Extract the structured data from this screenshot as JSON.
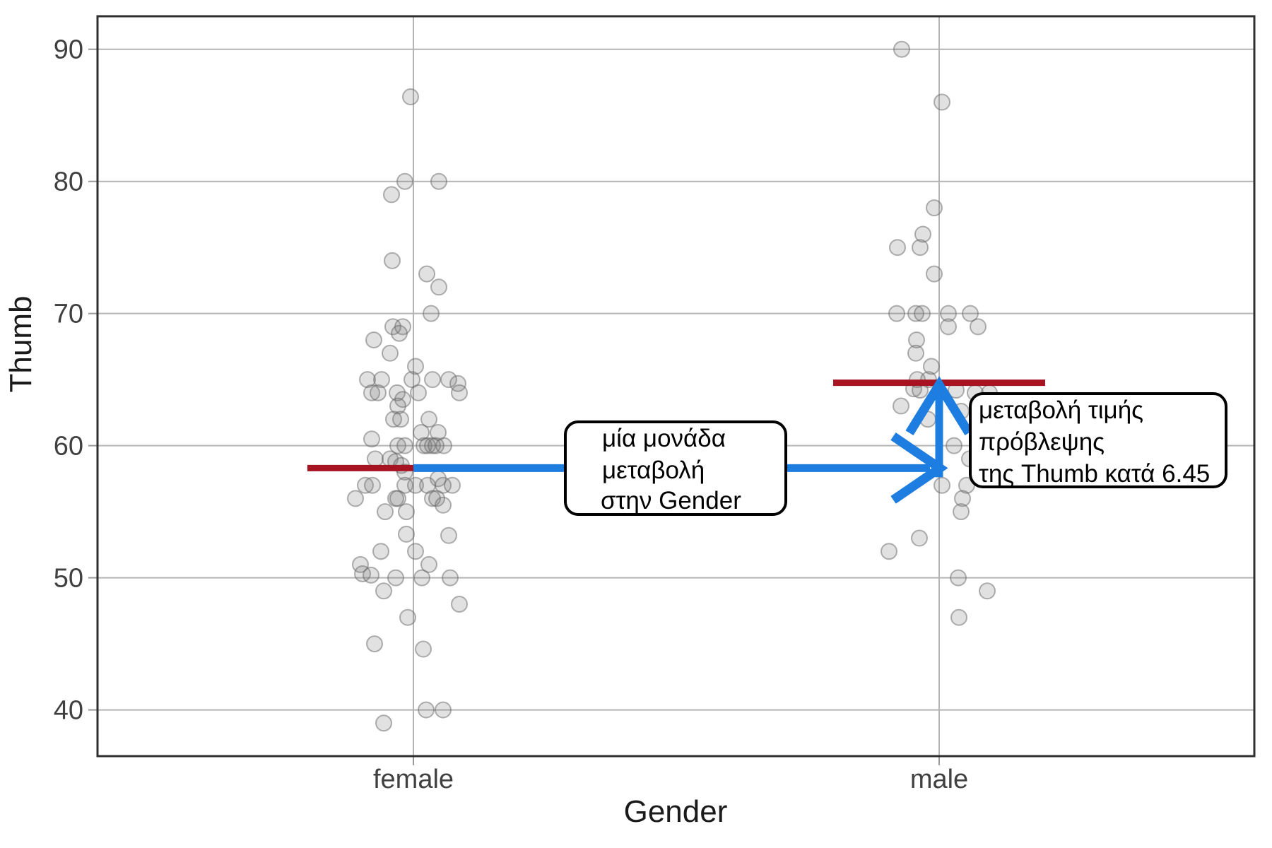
{
  "chart_data": {
    "type": "scatter",
    "title": "",
    "xlabel": "Gender",
    "ylabel": "Thumb",
    "categories": [
      "female",
      "male"
    ],
    "yticks": [
      90,
      80,
      70,
      60,
      50,
      40
    ],
    "ylim": [
      36.5,
      92.5
    ],
    "grid": true,
    "legend": "none",
    "series": [
      {
        "name": "female",
        "points": [
          [
            86.4,
            -4
          ],
          [
            80,
            -12
          ],
          [
            80,
            36
          ],
          [
            79,
            -31
          ],
          [
            74,
            -30
          ],
          [
            73,
            19
          ],
          [
            72,
            36
          ],
          [
            70,
            25
          ],
          [
            69,
            -29
          ],
          [
            69,
            -15
          ],
          [
            68.5,
            -20
          ],
          [
            68,
            -56
          ],
          [
            67,
            -33
          ],
          [
            66,
            3
          ],
          [
            65,
            -65
          ],
          [
            65,
            -45
          ],
          [
            65,
            -2
          ],
          [
            65,
            27
          ],
          [
            65,
            50
          ],
          [
            64.7,
            63
          ],
          [
            64,
            -59
          ],
          [
            64,
            -50
          ],
          [
            64,
            -23
          ],
          [
            64,
            7
          ],
          [
            64,
            65
          ],
          [
            63.5,
            -15
          ],
          [
            63,
            -22
          ],
          [
            62,
            -28
          ],
          [
            62,
            -18
          ],
          [
            62,
            22
          ],
          [
            61,
            11
          ],
          [
            61,
            35
          ],
          [
            60.5,
            -59
          ],
          [
            60,
            -22
          ],
          [
            60,
            -12
          ],
          [
            60,
            15
          ],
          [
            60,
            20
          ],
          [
            60,
            27
          ],
          [
            60,
            32
          ],
          [
            60,
            43
          ],
          [
            59,
            -54
          ],
          [
            59,
            -33
          ],
          [
            58.8,
            -25
          ],
          [
            58.5,
            -17
          ],
          [
            58,
            -12
          ],
          [
            57.5,
            35
          ],
          [
            57,
            -68
          ],
          [
            57,
            -58
          ],
          [
            57,
            -12
          ],
          [
            57,
            3
          ],
          [
            57,
            20
          ],
          [
            57,
            42
          ],
          [
            57,
            55
          ],
          [
            56,
            -82
          ],
          [
            56,
            -25
          ],
          [
            56,
            -22
          ],
          [
            56,
            27
          ],
          [
            56,
            33
          ],
          [
            55.5,
            42
          ],
          [
            55,
            -40
          ],
          [
            55,
            -10
          ],
          [
            53.3,
            -10
          ],
          [
            53.2,
            50
          ],
          [
            52,
            -46
          ],
          [
            52,
            3
          ],
          [
            51,
            -75
          ],
          [
            51,
            22
          ],
          [
            50.3,
            -72
          ],
          [
            50.2,
            -60
          ],
          [
            50,
            -25
          ],
          [
            50,
            12
          ],
          [
            50,
            52
          ],
          [
            49,
            -42
          ],
          [
            48,
            65
          ],
          [
            47,
            -8
          ],
          [
            45,
            -55
          ],
          [
            44.6,
            14
          ],
          [
            40,
            18
          ],
          [
            40,
            42
          ],
          [
            39,
            -42
          ]
        ]
      },
      {
        "name": "male",
        "points": [
          [
            90,
            -53
          ],
          [
            86,
            4
          ],
          [
            78,
            -7
          ],
          [
            76,
            -23
          ],
          [
            75,
            -59
          ],
          [
            75,
            -27
          ],
          [
            73,
            -7
          ],
          [
            70,
            -60
          ],
          [
            70,
            -33
          ],
          [
            70,
            -24
          ],
          [
            70,
            13
          ],
          [
            70,
            44
          ],
          [
            69,
            13
          ],
          [
            69,
            55
          ],
          [
            68,
            -32
          ],
          [
            67,
            -33
          ],
          [
            66,
            -11
          ],
          [
            65,
            -31
          ],
          [
            65,
            -15
          ],
          [
            64.3,
            -36
          ],
          [
            64.2,
            -27
          ],
          [
            64.2,
            24
          ],
          [
            64,
            51
          ],
          [
            64,
            71
          ],
          [
            63,
            -54
          ],
          [
            62.6,
            31
          ],
          [
            62,
            -16
          ],
          [
            60,
            21
          ],
          [
            59,
            43
          ],
          [
            57,
            4
          ],
          [
            57,
            39
          ],
          [
            56,
            33
          ],
          [
            55,
            31
          ],
          [
            53,
            -28
          ],
          [
            52,
            -71
          ],
          [
            50,
            27
          ],
          [
            49,
            68
          ],
          [
            47,
            28
          ]
        ]
      }
    ],
    "mean_lines": [
      {
        "category": "female",
        "y": 58.3
      },
      {
        "category": "male",
        "y": 64.76
      }
    ],
    "slope_label_value": "6.45",
    "annotations": {
      "unit_change_box": {
        "lines": [
          "μία μονάδα",
          "μεταβολή",
          "στην Gender"
        ]
      },
      "prediction_box": {
        "lines": [
          "μεταβολή τιμής",
          "πρόβλεψης",
          "της Thumb κατά 6.45"
        ]
      }
    },
    "colors": {
      "mean_line": "#a61422",
      "arrow": "#1e7de0",
      "point_fill": "#777777",
      "point_stroke": "#666666",
      "grid": "#b4b4b4",
      "tick": "#999999",
      "axis_text": "#404040",
      "panel_border": "#2f2f2f",
      "box_border": "#000000",
      "box_fill": "#ffffff"
    }
  }
}
